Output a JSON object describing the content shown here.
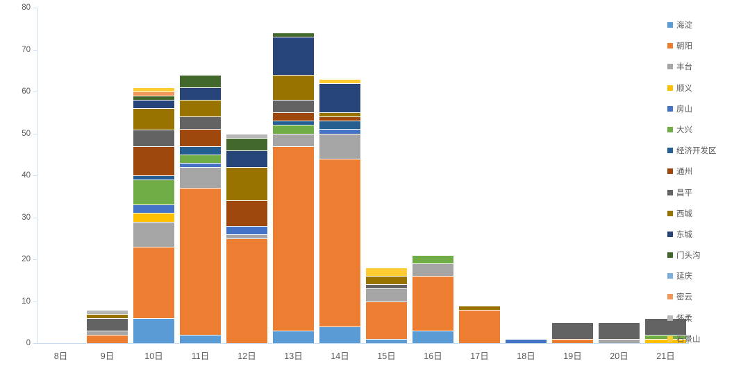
{
  "chart_data": {
    "type": "bar",
    "stacked": true,
    "title": "",
    "xlabel": "",
    "ylabel": "",
    "ylim": [
      0,
      80
    ],
    "yticks": [
      0,
      10,
      20,
      30,
      40,
      50,
      60,
      70,
      80
    ],
    "grid": false,
    "legend_position": "right",
    "axis_color": "#c9ddf0",
    "label_color": "#595959",
    "categories": [
      "8日",
      "9日",
      "10日",
      "11日",
      "12日",
      "13日",
      "14日",
      "15日",
      "16日",
      "17日",
      "18日",
      "19日",
      "20日",
      "21日"
    ],
    "series": [
      {
        "name": "海淀",
        "color": "#5B9BD5",
        "values": [
          0,
          0,
          6,
          2,
          0,
          3,
          4,
          1,
          3,
          0,
          0,
          0,
          0,
          0
        ]
      },
      {
        "name": "朝阳",
        "color": "#ED7D31",
        "values": [
          0,
          2,
          17,
          35,
          25,
          44,
          40,
          9,
          13,
          8,
          0,
          1,
          0,
          0
        ]
      },
      {
        "name": "丰台",
        "color": "#A5A5A5",
        "values": [
          0,
          1,
          6,
          5,
          1,
          3,
          6,
          3,
          3,
          0,
          0,
          0,
          1,
          0
        ]
      },
      {
        "name": "顺义",
        "color": "#FFC000",
        "values": [
          0,
          0,
          2,
          0,
          0,
          0,
          0,
          0,
          0,
          0,
          0,
          0,
          0,
          1
        ]
      },
      {
        "name": "房山",
        "color": "#4472C4",
        "values": [
          0,
          0,
          2,
          1,
          2,
          0,
          1,
          0,
          0,
          0,
          1,
          0,
          0,
          0
        ]
      },
      {
        "name": "大兴",
        "color": "#70AD47",
        "values": [
          0,
          0,
          6,
          2,
          0,
          2,
          0,
          0,
          2,
          0,
          0,
          0,
          0,
          1
        ]
      },
      {
        "name": "经济开发区",
        "color": "#255E91",
        "values": [
          0,
          0,
          1,
          2,
          0,
          1,
          2,
          0,
          0,
          0,
          0,
          0,
          0,
          0
        ]
      },
      {
        "name": "通州",
        "color": "#9E480E",
        "values": [
          0,
          0,
          7,
          4,
          6,
          2,
          1,
          0,
          0,
          0,
          0,
          0,
          0,
          0
        ]
      },
      {
        "name": "昌平",
        "color": "#636363",
        "values": [
          0,
          3,
          4,
          3,
          0,
          3,
          0,
          1,
          0,
          0,
          0,
          4,
          4,
          4
        ]
      },
      {
        "name": "西城",
        "color": "#997300",
        "values": [
          0,
          1,
          5,
          4,
          8,
          6,
          1,
          2,
          0,
          1,
          0,
          0,
          0,
          0
        ]
      },
      {
        "name": "东城",
        "color": "#264478",
        "values": [
          0,
          0,
          2,
          3,
          4,
          9,
          7,
          0,
          0,
          0,
          0,
          0,
          0,
          0
        ]
      },
      {
        "name": "门头沟",
        "color": "#43682B",
        "values": [
          0,
          0,
          1,
          3,
          3,
          1,
          0,
          0,
          0,
          0,
          0,
          0,
          0,
          0
        ]
      },
      {
        "name": "延庆",
        "color": "#7CAFDD",
        "values": [
          0,
          0,
          0,
          0,
          0,
          0,
          0,
          0,
          0,
          0,
          0,
          0,
          0,
          0
        ]
      },
      {
        "name": "密云",
        "color": "#F1975A",
        "values": [
          0,
          0,
          1,
          0,
          0,
          0,
          0,
          0,
          0,
          0,
          0,
          0,
          0,
          0
        ]
      },
      {
        "name": "怀柔",
        "color": "#B7B7B7",
        "values": [
          0,
          1,
          0,
          0,
          1,
          0,
          0,
          0,
          0,
          0,
          0,
          0,
          0,
          0
        ]
      },
      {
        "name": "石景山",
        "color": "#FFCD33",
        "values": [
          0,
          0,
          1,
          0,
          0,
          0,
          1,
          2,
          0,
          0,
          0,
          0,
          0,
          0
        ]
      }
    ]
  }
}
